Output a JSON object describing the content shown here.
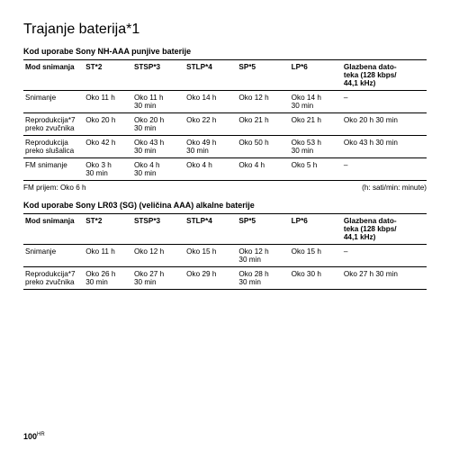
{
  "title": "Trajanje baterija*1",
  "section1_subtitle": "Kod uporabe Sony NH-AAA punjive baterije",
  "section2_subtitle": "Kod uporabe Sony LR03 (SG) (veličina AAA) alkalne baterije",
  "headers": {
    "c1": "Mod snimanja",
    "c2": "ST*2",
    "c3": "STSP*3",
    "c4": "STLP*4",
    "c5": "SP*5",
    "c6": "LP*6",
    "c7": "Glazbena dato-\nteka (128 kbps/\n44,1 kHz)"
  },
  "t1": {
    "r1": {
      "c1": "Snimanje",
      "c2": "Oko 11 h",
      "c3": "Oko 11 h\n30 min",
      "c4": "Oko 14 h",
      "c5": "Oko 12 h",
      "c6": "Oko 14 h\n30 min",
      "c7": "–"
    },
    "r2": {
      "c1": "Reprodukcija*7\npreko zvučnika",
      "c2": "Oko 20 h",
      "c3": "Oko 20 h\n30 min",
      "c4": "Oko 22 h",
      "c5": "Oko 21 h",
      "c6": "Oko 21 h",
      "c7": "Oko 20 h 30 min"
    },
    "r3": {
      "c1": "Reprodukcija\npreko slušalica",
      "c2": "Oko 42 h",
      "c3": "Oko 43 h\n30 min",
      "c4": "Oko 49 h\n30 min",
      "c5": "Oko 50 h",
      "c6": "Oko 53 h\n30 min",
      "c7": "Oko 43 h 30 min"
    },
    "r4": {
      "c1": "FM snimanje",
      "c2": "Oko 3 h\n30 min",
      "c3": "Oko 4 h\n30 min",
      "c4": "Oko 4 h",
      "c5": "Oko 4 h",
      "c6": "Oko 5 h",
      "c7": "–"
    }
  },
  "fm_note": "FM prijem: Oko 6 h",
  "units_note": "(h: sati/min: minute)",
  "t2": {
    "r1": {
      "c1": "Snimanje",
      "c2": "Oko 11 h",
      "c3": "Oko 12 h",
      "c4": "Oko 15 h",
      "c5": "Oko 12 h\n30 min",
      "c6": "Oko 15 h",
      "c7": "–"
    },
    "r2": {
      "c1": "Reprodukcija*7\npreko zvučnika",
      "c2": "Oko 26 h\n30 min",
      "c3": "Oko 27 h\n30 min",
      "c4": "Oko 29 h",
      "c5": "Oko 28 h\n30 min",
      "c6": "Oko 30 h",
      "c7": "Oko 27 h 30 min"
    }
  },
  "page": "100"
}
